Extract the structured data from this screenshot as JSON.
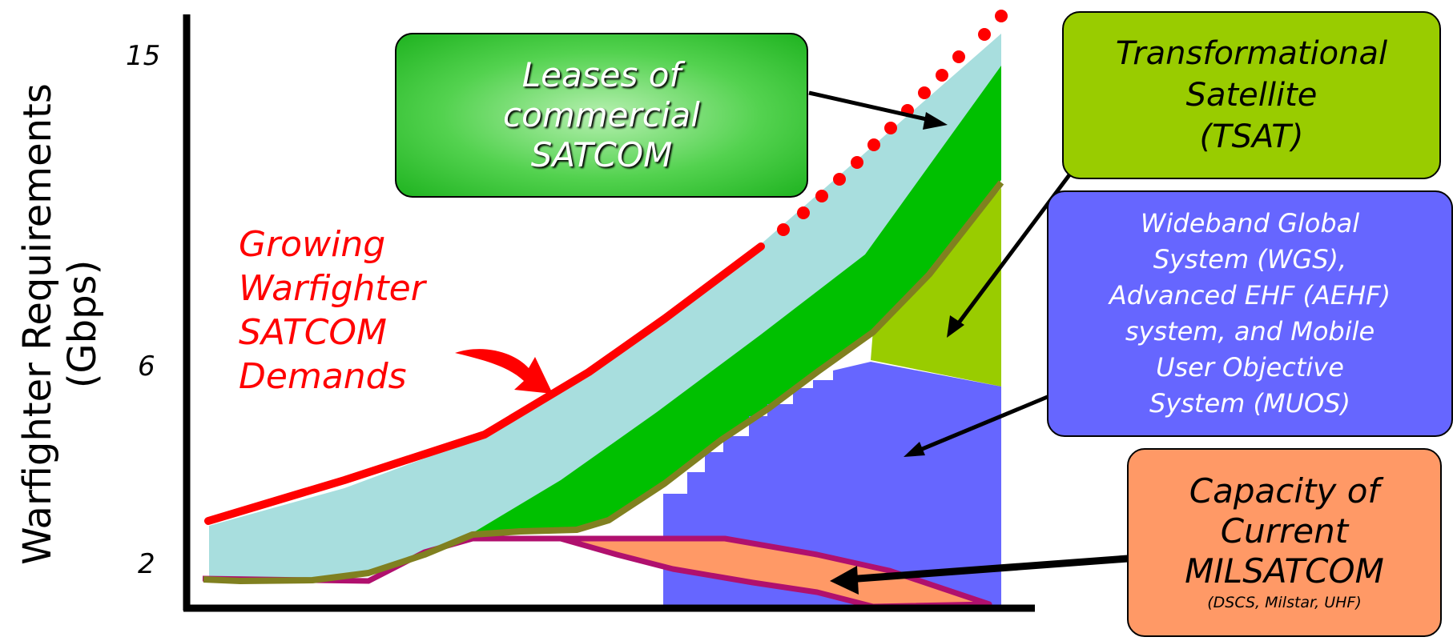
{
  "y_axis": {
    "label_line1": "Warfighter Requirements",
    "label_line2": "(Gbps)",
    "ticks": [
      "15",
      "6",
      "2"
    ]
  },
  "callouts": {
    "leases": [
      "Leases of",
      "commercial",
      "SATCOM"
    ],
    "tsat": [
      "Transformational",
      "Satellite",
      "(TSAT)"
    ],
    "wgs": [
      "Wideband Global",
      "System (WGS),",
      "Advanced EHF (AEHF)",
      "system, and Mobile",
      "User Objective",
      "System (MUOS)"
    ],
    "milsatcom": [
      "Capacity of",
      "Current",
      "MILSATCOM"
    ],
    "milsatcom_note": "(DSCS, Milstar, UHF)",
    "demand": [
      "Growing",
      "Warfighter",
      "SATCOM",
      "Demands"
    ]
  },
  "colors": {
    "demand_line": "#ff0000",
    "leases_fill": "#a8dede",
    "green_fill": "#00c000",
    "tsat_fill": "#99cc00",
    "wgs_fill": "#6666ff",
    "milsatcom_fill": "#ff9966",
    "milsatcom_border": "#b0106e",
    "olive_line": "#808020"
  }
}
